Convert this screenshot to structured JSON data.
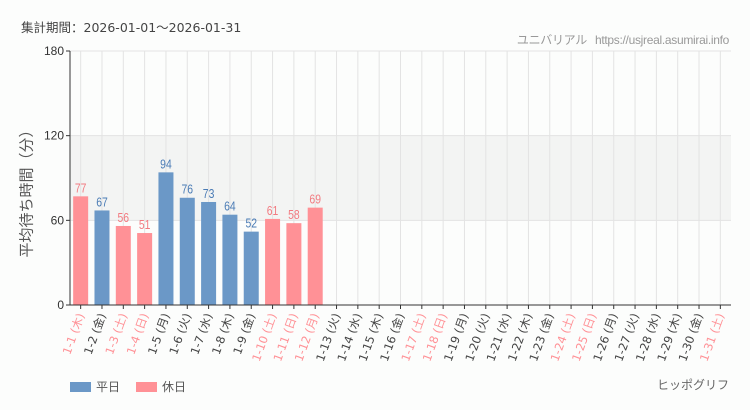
{
  "header": {
    "period_label": "集計期間：2026-01-01〜2026-01-31",
    "source_site": "ユニバリアル",
    "source_url": "https://usjreal.asumirai.info"
  },
  "footer": {
    "brand": "ヒッポグリフ"
  },
  "legend": [
    {
      "label": "平日",
      "color": "#6b98c7"
    },
    {
      "label": "休日",
      "color": "#ff9196"
    }
  ],
  "colors": {
    "weekday": "#6b98c7",
    "weekday_label": "#4a7bb5",
    "holiday": "#ff9196",
    "holiday_label": "#f27a80",
    "weekday_tick": "#444444",
    "band": "#f3f4f3",
    "grid": "#e3e3e3",
    "axis": "#333333"
  },
  "chart_data": {
    "type": "bar",
    "title": "",
    "xlabel": "",
    "ylabel": "平均待ち時間（分）",
    "ylim": [
      0,
      180
    ],
    "yticks": [
      0,
      60,
      120,
      180
    ],
    "grid": true,
    "shaded_band": [
      60,
      120
    ],
    "legend_position": "bottom-left",
    "categories": [
      "1-1 (木)",
      "1-2 (金)",
      "1-3 (土)",
      "1-4 (日)",
      "1-5 (月)",
      "1-6 (火)",
      "1-7 (水)",
      "1-8 (木)",
      "1-9 (金)",
      "1-10 (土)",
      "1-11 (日)",
      "1-12 (月)",
      "1-13 (火)",
      "1-14 (水)",
      "1-15 (木)",
      "1-16 (金)",
      "1-17 (土)",
      "1-18 (日)",
      "1-19 (月)",
      "1-20 (火)",
      "1-21 (水)",
      "1-22 (木)",
      "1-23 (金)",
      "1-24 (土)",
      "1-25 (日)",
      "1-26 (月)",
      "1-27 (火)",
      "1-28 (水)",
      "1-29 (木)",
      "1-30 (金)",
      "1-31 (土)"
    ],
    "day_type": [
      "holiday",
      "weekday",
      "holiday",
      "holiday",
      "weekday",
      "weekday",
      "weekday",
      "weekday",
      "weekday",
      "holiday",
      "holiday",
      "holiday",
      "weekday",
      "weekday",
      "weekday",
      "weekday",
      "holiday",
      "holiday",
      "weekday",
      "weekday",
      "weekday",
      "weekday",
      "weekday",
      "holiday",
      "holiday",
      "weekday",
      "weekday",
      "weekday",
      "weekday",
      "weekday",
      "holiday"
    ],
    "values": [
      77,
      67,
      56,
      51,
      94,
      76,
      73,
      64,
      52,
      61,
      58,
      69,
      null,
      null,
      null,
      null,
      null,
      null,
      null,
      null,
      null,
      null,
      null,
      null,
      null,
      null,
      null,
      null,
      null,
      null,
      null
    ],
    "series": [
      {
        "name": "平日",
        "values": [
          null,
          67,
          null,
          null,
          94,
          76,
          73,
          64,
          52,
          null,
          null,
          null,
          null,
          null,
          null,
          null,
          null,
          null,
          null,
          null,
          null,
          null,
          null,
          null,
          null,
          null,
          null,
          null,
          null,
          null,
          null
        ]
      },
      {
        "name": "休日",
        "values": [
          77,
          null,
          56,
          51,
          null,
          null,
          null,
          null,
          null,
          61,
          58,
          69,
          null,
          null,
          null,
          null,
          null,
          null,
          null,
          null,
          null,
          null,
          null,
          null,
          null,
          null,
          null,
          null,
          null,
          null,
          null
        ]
      }
    ]
  }
}
